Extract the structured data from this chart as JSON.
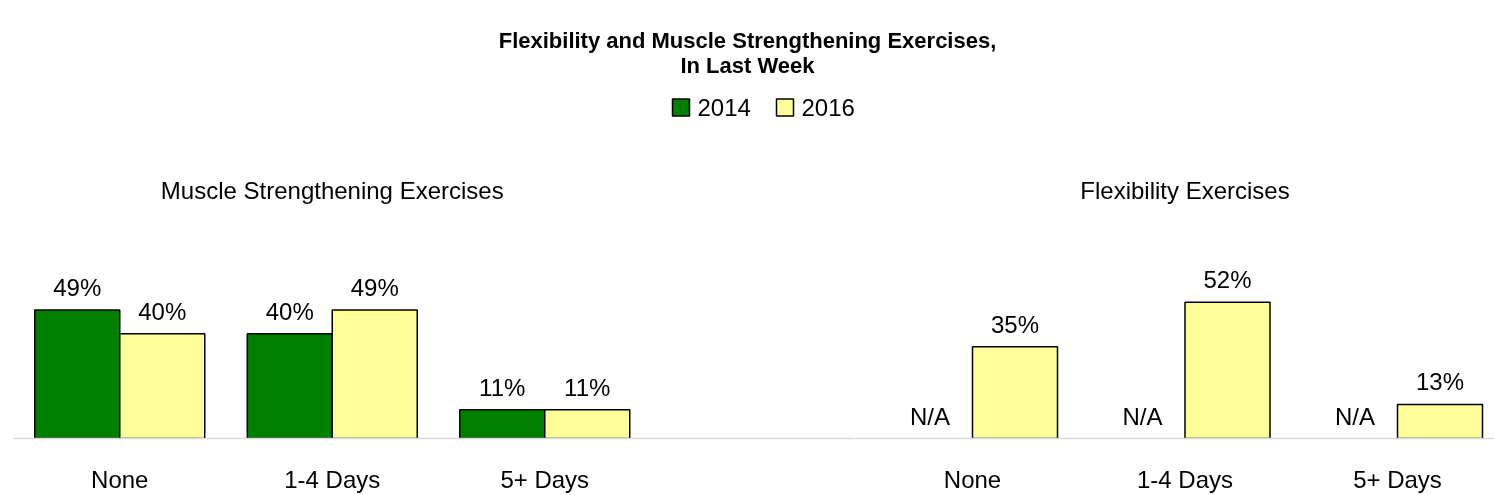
{
  "chart_data": [
    {
      "type": "bar",
      "title": "Flexibility and Muscle Strengthening Exercises,\nIn Last Week",
      "subtitle": "Muscle Strengthening Exercises",
      "categories": [
        "None",
        "1-4 Days",
        "5+ Days"
      ],
      "series": [
        {
          "name": "2014",
          "color": "#008000",
          "values": [
            49,
            40,
            11
          ],
          "value_labels": [
            "49%",
            "40%",
            "11%"
          ]
        },
        {
          "name": "2016",
          "color": "#ffff99",
          "values": [
            40,
            49,
            11
          ],
          "value_labels": [
            "40%",
            "49%",
            "11%"
          ]
        }
      ],
      "legend": "top"
    },
    {
      "type": "bar",
      "subtitle": "Flexibility Exercises",
      "categories": [
        "None",
        "1-4 Days",
        "5+ Days"
      ],
      "series": [
        {
          "values": [
            null,
            null,
            null
          ],
          "value_labels": [
            "N/A",
            "N/A",
            "N/A"
          ]
        },
        {
          "color": "#ffff99",
          "values": [
            35,
            52,
            13
          ],
          "value_labels": [
            "35%",
            "52%",
            "13%"
          ]
        }
      ]
    }
  ]
}
